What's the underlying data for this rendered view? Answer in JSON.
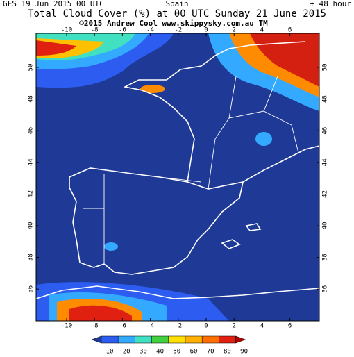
{
  "header": {
    "run": "GFS 19 Jun 2015 00 UTC",
    "region": "Spain",
    "lead": "+ 48 hour",
    "title": "Total Cloud Cover (%) at 00 UTC Sunday 21 June 2015",
    "credit": "©2015 Andrew Cool  www.skippysky.com.au  TM"
  },
  "axes": {
    "lon_labels": [
      -10,
      -8,
      -6,
      -4,
      -2,
      0,
      2,
      4,
      6
    ],
    "lat_labels": [
      50,
      48,
      46,
      44,
      42,
      40,
      38,
      36
    ]
  },
  "colorbar": {
    "labels": [
      10,
      20,
      30,
      40,
      50,
      60,
      70,
      80,
      90
    ]
  }
}
